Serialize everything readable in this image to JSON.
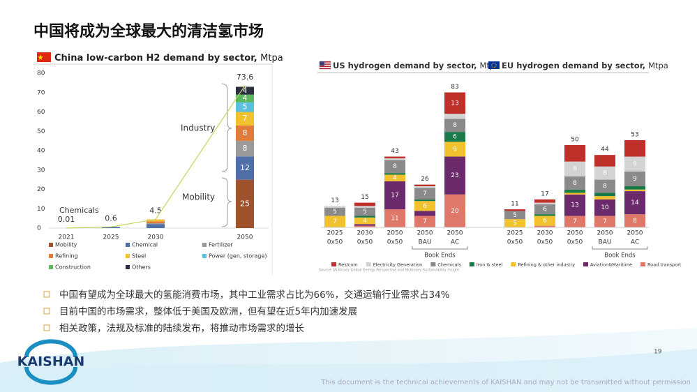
{
  "slide_title": "中国将成为全球最大的清洁氢市场",
  "chart_data": [
    {
      "type": "stacked_bar",
      "title": "China low-carbon H2 demand by sector,",
      "unit": "Mtpa",
      "categories": [
        "2021",
        "2025",
        "2030",
        null,
        "2050"
      ],
      "ylim": [
        0,
        80
      ],
      "yticks": [
        0,
        10,
        20,
        30,
        40,
        50,
        60,
        70,
        80
      ],
      "series": [
        {
          "name": "Mobility",
          "color": "#a0522d",
          "values": [
            null,
            null,
            null,
            null,
            25
          ],
          "value_labels": [
            null,
            null,
            null,
            null,
            "25"
          ]
        },
        {
          "name": "Chemical",
          "color": "#4f6fa8",
          "values": [
            0.01,
            0.6,
            2,
            null,
            12
          ],
          "value_labels": [
            null,
            null,
            null,
            null,
            "12"
          ]
        },
        {
          "name": "Fertilizer",
          "color": "#9a9a9a",
          "values": [
            null,
            null,
            0.5,
            null,
            8
          ],
          "value_labels": [
            null,
            null,
            null,
            null,
            "8"
          ]
        },
        {
          "name": "Refining",
          "color": "#e07b39",
          "values": [
            null,
            null,
            1,
            null,
            8
          ],
          "value_labels": [
            null,
            null,
            null,
            null,
            "8"
          ]
        },
        {
          "name": "Steel",
          "color": "#f2c12e",
          "values": [
            null,
            null,
            1,
            null,
            7
          ],
          "value_labels": [
            null,
            null,
            null,
            null,
            "7"
          ]
        },
        {
          "name": "Power (gen, storage)",
          "color": "#5bc0de",
          "values": [
            null,
            null,
            null,
            null,
            5
          ],
          "value_labels": [
            null,
            null,
            null,
            null,
            "5"
          ]
        },
        {
          "name": "Construction",
          "color": "#5cb85c",
          "values": [
            null,
            null,
            null,
            null,
            4
          ],
          "value_labels": [
            null,
            null,
            null,
            null,
            "4"
          ]
        },
        {
          "name": "Others",
          "color": "#2c2f3f",
          "values": [
            null,
            null,
            null,
            null,
            4
          ],
          "value_labels": [
            null,
            null,
            null,
            null,
            "4"
          ]
        }
      ],
      "totals": {
        "color": "#c3d45a",
        "values": [
          0.01,
          0.6,
          4.5,
          null,
          73.6
        ]
      },
      "annotations": [
        "Industry",
        "Mobility",
        "Chemicals"
      ]
    },
    {
      "type": "stacked_bar_panels",
      "panels": [
        {
          "title": "US hydrogen demand by sector,",
          "unit": "Mtpa"
        },
        {
          "title": "EU hydrogen demand by sector,",
          "unit": "Mtpa"
        }
      ],
      "categories": [
        "2025",
        "2030",
        "2050",
        "2050",
        "2050",
        "2025",
        "2030",
        "2050",
        "2050",
        "2050"
      ],
      "subcategories": [
        "0x50",
        "0x50",
        "0x50",
        "BAU",
        "AC",
        "0x50",
        "0x50",
        "0x50",
        "BAU",
        "AC"
      ],
      "totals": [
        13,
        15,
        43,
        26,
        83,
        11,
        17,
        50,
        44,
        53
      ],
      "series": [
        {
          "name": "Road transport",
          "color": "#e0786a",
          "values": [
            0,
            1,
            11,
            7,
            20,
            0,
            1,
            7,
            7,
            8
          ],
          "value_labels": [
            null,
            null,
            "11",
            "7",
            "20",
            null,
            null,
            "7",
            "7",
            "8"
          ]
        },
        {
          "name": "Aviation&Maritime",
          "color": "#6b2a6b",
          "values": [
            0,
            1,
            17,
            3,
            23,
            0,
            0,
            13,
            10,
            14
          ],
          "value_labels": [
            null,
            null,
            "17",
            null,
            "23",
            null,
            null,
            "13",
            "10",
            "14"
          ]
        },
        {
          "name": "Refining & other industry",
          "color": "#f2c12e",
          "values": [
            7,
            4,
            4,
            6,
            9,
            5,
            6,
            1,
            2,
            1
          ],
          "value_labels": [
            "7",
            "4",
            "4",
            "6",
            "9",
            "5",
            "6",
            null,
            null,
            null
          ]
        },
        {
          "name": "Iron & steel",
          "color": "#1a7a4a",
          "values": [
            0,
            1,
            1,
            1,
            6,
            0,
            1,
            2,
            2,
            2
          ],
          "value_labels": [
            null,
            null,
            null,
            null,
            "6",
            null,
            null,
            null,
            null,
            null
          ]
        },
        {
          "name": "Chemicals",
          "color": "#8a8a8a",
          "values": [
            5,
            5,
            8,
            7,
            8,
            5,
            6,
            8,
            8,
            9
          ],
          "value_labels": [
            "5",
            "5",
            "8",
            "7",
            "8",
            "5",
            "6",
            "8",
            "8",
            "9"
          ]
        },
        {
          "name": "Electricity Generation",
          "color": "#d3d3d3",
          "values": [
            1,
            1,
            1,
            1,
            3,
            0,
            1,
            9,
            8,
            9
          ],
          "value_labels": [
            null,
            null,
            null,
            null,
            null,
            null,
            null,
            "9",
            "8",
            "9"
          ]
        },
        {
          "name": "Res/com",
          "color": "#c0302a",
          "values": [
            0,
            2,
            1,
            1,
            13,
            1,
            2,
            10,
            7,
            10
          ],
          "value_labels": [
            null,
            null,
            null,
            null,
            "13",
            null,
            null,
            null,
            null,
            null
          ]
        }
      ],
      "book_ends": [
        "Book Ends",
        "Book Ends"
      ],
      "source": "Source: McKinsey Global Energy Perspective and McKinsey Sustainability Insight"
    }
  ],
  "bullets": [
    "中国有望成为全球最大的氢能消费市场，其中工业需求占比为66%，交通运输行业需求占34%",
    "目前中国的市场需求，整体低于美国及欧洲，但有望在近5年内加速发展",
    "相关政策，法规及标准的陆续发布，将推动市场需求的增长"
  ],
  "page_number": "19",
  "logo": "KAISHAN",
  "footer": "This document is the technical achievements of KAISHAN and may not be transmitted without permission"
}
